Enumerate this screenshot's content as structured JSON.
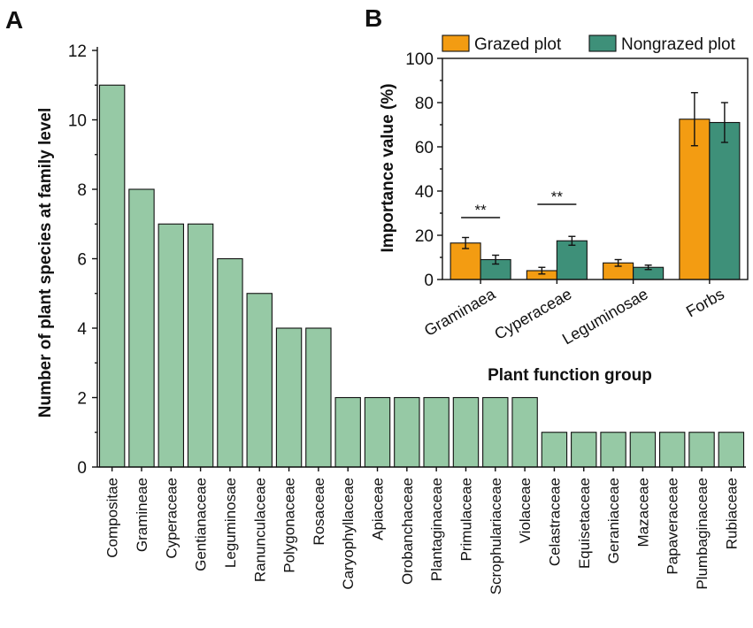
{
  "chart_data": [
    {
      "panel": "A",
      "type": "bar",
      "title": "",
      "xlabel": "",
      "ylabel": "Number of plant species at family level",
      "ylim": [
        0,
        12
      ],
      "yticks": [
        "0",
        "2",
        "4",
        "6",
        "8",
        "10",
        "12"
      ],
      "bar_color": "#96c9a5",
      "categories": [
        "Compositae",
        "Gramineae",
        "Cyperaceae",
        "Gentianaceae",
        "Leguminosae",
        "Ranunculaceae",
        "Polygonaceae",
        "Rosaceae",
        "Caryophyllaceae",
        "Apiaceae",
        "Orobanchaceae",
        "Plantaginaceae",
        "Primulaceae",
        "Scrophulariaceae",
        "Violaceae",
        "Celastraceae",
        "Equisetaceae",
        "Geraniaceae",
        "Mazaceae",
        "Papaveraceae",
        "Plumbaginaceae",
        "Rubiaceae"
      ],
      "values": [
        11,
        8,
        7,
        7,
        6,
        5,
        4,
        4,
        2,
        2,
        2,
        2,
        2,
        2,
        2,
        1,
        1,
        1,
        1,
        1,
        1,
        1
      ]
    },
    {
      "panel": "B",
      "type": "bar",
      "title": "",
      "xlabel": "Plant function group",
      "ylabel": "Importance  value (%)",
      "ylim": [
        0,
        100
      ],
      "yticks": [
        "0",
        "20",
        "40",
        "60",
        "80",
        "100"
      ],
      "legend_position": "top",
      "categories": [
        "Graminaea",
        "Cyperaceae",
        "Leguminosae",
        "Forbs"
      ],
      "series": [
        {
          "name": "Grazed plot",
          "color": "#f39c12",
          "values": [
            16.5,
            4,
            7.5,
            72.5
          ],
          "errors": [
            2.5,
            1.5,
            1.5,
            12
          ]
        },
        {
          "name": "Nongrazed plot",
          "color": "#3e9079",
          "values": [
            9,
            17.5,
            5.5,
            71
          ],
          "errors": [
            2,
            2,
            1,
            9
          ]
        }
      ],
      "annotations": [
        {
          "category": "Graminaea",
          "text": "**",
          "y": 28
        },
        {
          "category": "Cyperaceae",
          "text": "**",
          "y": 34
        }
      ]
    }
  ],
  "panel_labels": {
    "a": "A",
    "b": "B"
  }
}
